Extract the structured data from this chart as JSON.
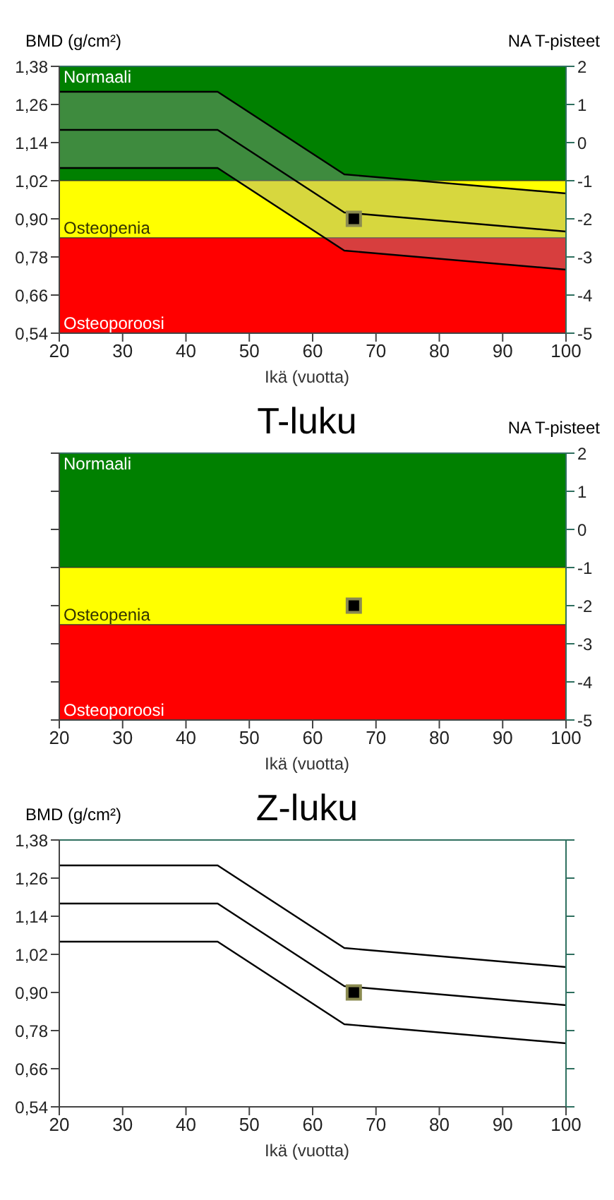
{
  "chart_data": [
    {
      "type": "line",
      "xlabel": "Ikä (vuotta)",
      "ylabel": "BMD (g/cm²)",
      "y2label": "NA T-pisteet",
      "xlim": [
        20,
        100
      ],
      "xticks": [
        20,
        30,
        40,
        50,
        60,
        70,
        80,
        90,
        100
      ],
      "ylim": [
        0.54,
        1.38
      ],
      "yticks": [
        {
          "value": 0.54,
          "label": "0,54"
        },
        {
          "value": 0.66,
          "label": "0,66"
        },
        {
          "value": 0.78,
          "label": "0,78"
        },
        {
          "value": 0.9,
          "label": "0,90"
        },
        {
          "value": 1.02,
          "label": "1,02"
        },
        {
          "value": 1.14,
          "label": "1,14"
        },
        {
          "value": 1.26,
          "label": "1,26"
        },
        {
          "value": 1.38,
          "label": "1,38"
        }
      ],
      "y2lim": [
        -5,
        2
      ],
      "y2ticks": [
        -5,
        -4,
        -3,
        -2,
        -1,
        0,
        1,
        2
      ],
      "bands": [
        {
          "axis": "y",
          "from": 1.02,
          "to": 1.38,
          "label": "Normaali",
          "color": "#008000"
        },
        {
          "axis": "y",
          "from": 0.84,
          "to": 1.02,
          "label": "Osteopenia",
          "color": "#ffff00"
        },
        {
          "axis": "y",
          "from": 0.54,
          "to": 0.84,
          "label": "Osteoporoosi",
          "color": "#ff0000"
        }
      ],
      "series": [
        {
          "color": "#000000",
          "x": [
            20,
            45,
            65,
            100
          ],
          "values": [
            1.3,
            1.3,
            1.04,
            0.98
          ]
        },
        {
          "color": "#000000",
          "x": [
            20,
            45,
            65,
            100
          ],
          "values": [
            1.18,
            1.18,
            0.92,
            0.86
          ],
          "lower": [
            1.06,
            1.06,
            0.8,
            0.74
          ],
          "upper": [
            1.3,
            1.3,
            1.04,
            0.98
          ]
        },
        {
          "color": "#000000",
          "x": [
            20,
            45,
            65,
            100
          ],
          "values": [
            1.06,
            1.06,
            0.8,
            0.74
          ]
        },
        {
          "type": "scatter",
          "color": "#000000",
          "marker": "square",
          "x": [
            66.5
          ],
          "values": [
            0.9
          ]
        }
      ],
      "grid": false,
      "legend": false,
      "marker": "none",
      "line_style": "solid"
    },
    {
      "type": "scatter",
      "title": "T-luku",
      "xlabel": "Ikä (vuotta)",
      "y2label": "NA T-pisteet",
      "xlim": [
        20,
        100
      ],
      "xticks": [
        20,
        30,
        40,
        50,
        60,
        70,
        80,
        90,
        100
      ],
      "y2lim": [
        -5,
        2
      ],
      "y2ticks": [
        -5,
        -4,
        -3,
        -2,
        -1,
        0,
        1,
        2
      ],
      "bands": [
        {
          "axis": "y2",
          "from": -1,
          "to": 2,
          "label": "Normaali",
          "color": "#008000"
        },
        {
          "axis": "y2",
          "from": -2.5,
          "to": -1,
          "label": "Osteopenia",
          "color": "#ffff00"
        },
        {
          "axis": "y2",
          "from": -5,
          "to": -2.5,
          "label": "Osteoporoosi",
          "color": "#ff0000"
        }
      ],
      "series": [
        {
          "color": "#000000",
          "marker": "square",
          "axis": "y2",
          "x": [
            66.5
          ],
          "values": [
            -2.0
          ]
        }
      ],
      "grid": false,
      "legend": false
    },
    {
      "type": "line",
      "title": "Z-luku",
      "xlabel": "Ikä (vuotta)",
      "ylabel": "BMD (g/cm²)",
      "xlim": [
        20,
        100
      ],
      "xticks": [
        20,
        30,
        40,
        50,
        60,
        70,
        80,
        90,
        100
      ],
      "ylim": [
        0.54,
        1.38
      ],
      "yticks": [
        {
          "value": 0.54,
          "label": "0,54"
        },
        {
          "value": 0.66,
          "label": "0,66"
        },
        {
          "value": 0.78,
          "label": "0,78"
        },
        {
          "value": 0.9,
          "label": "0,90"
        },
        {
          "value": 1.02,
          "label": "1,02"
        },
        {
          "value": 1.14,
          "label": "1,14"
        },
        {
          "value": 1.26,
          "label": "1,26"
        },
        {
          "value": 1.38,
          "label": "1,38"
        }
      ],
      "series": [
        {
          "color": "#000000",
          "x": [
            20,
            45,
            65,
            100
          ],
          "values": [
            1.3,
            1.3,
            1.04,
            0.98
          ]
        },
        {
          "color": "#000000",
          "x": [
            20,
            45,
            65,
            100
          ],
          "values": [
            1.18,
            1.18,
            0.92,
            0.86
          ]
        },
        {
          "color": "#000000",
          "x": [
            20,
            45,
            65,
            100
          ],
          "values": [
            1.06,
            1.06,
            0.8,
            0.74
          ]
        },
        {
          "type": "scatter",
          "color": "#000000",
          "marker": "square",
          "x": [
            66.5
          ],
          "values": [
            0.9
          ]
        }
      ],
      "grid": false,
      "legend": false,
      "marker": "none",
      "line_style": "solid"
    }
  ]
}
